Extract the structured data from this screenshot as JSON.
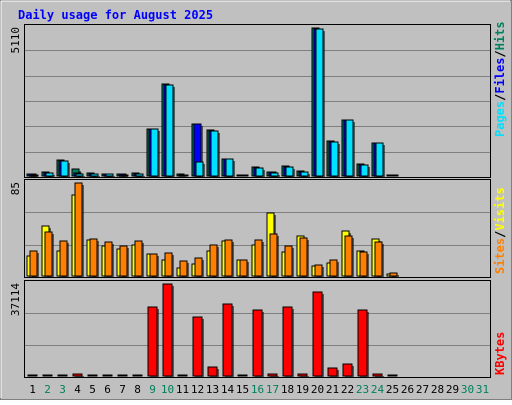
{
  "title": "Daily usage for August 2025",
  "labels": {
    "hits": "Hits",
    "files": "Files",
    "pages": "Pages",
    "visits": "Visits",
    "sites": "Sites",
    "kbytes": "KBytes",
    "sep": "/"
  },
  "colors": {
    "hits": "#00805c",
    "files": "#0000ff",
    "pages": "#00e0ff",
    "visits": "#ffff00",
    "sites": "#ff8000",
    "kbytes": "#ff0000",
    "title": "#0000ff",
    "plot_bg": "#c0c0c0",
    "grid": "#808080",
    "day_black": "#000000",
    "day_weekend": "#00805c"
  },
  "chart_data": [
    {
      "type": "bar",
      "name": "hits-files-pages",
      "ymax_label": "5110",
      "ylim": [
        0,
        5110
      ],
      "categories": [
        "1",
        "2",
        "3",
        "4",
        "5",
        "6",
        "7",
        "8",
        "9",
        "10",
        "11",
        "12",
        "13",
        "14",
        "15",
        "16",
        "17",
        "18",
        "19",
        "20",
        "21",
        "22",
        "23",
        "24",
        "25",
        "26",
        "27",
        "28",
        "29",
        "30",
        "31"
      ],
      "series": [
        {
          "name": "Hits",
          "values": [
            70,
            135,
            560,
            240,
            90,
            80,
            70,
            90,
            1640,
            3180,
            60,
            1800,
            1600,
            600,
            50,
            300,
            150,
            330,
            160,
            5110,
            1200,
            1950,
            400,
            1150,
            40,
            0,
            0,
            0,
            0,
            0,
            0
          ]
        },
        {
          "name": "Files",
          "values": [
            60,
            110,
            530,
            120,
            80,
            70,
            60,
            80,
            1630,
            3150,
            50,
            1780,
            1570,
            580,
            45,
            290,
            140,
            320,
            150,
            5090,
            1190,
            1940,
            390,
            1140,
            35,
            0,
            0,
            0,
            0,
            0,
            0
          ]
        },
        {
          "name": "Pages",
          "values": [
            50,
            100,
            510,
            80,
            60,
            60,
            50,
            70,
            1620,
            3130,
            40,
            480,
            1550,
            570,
            40,
            280,
            120,
            300,
            150,
            5080,
            1170,
            1920,
            370,
            1130,
            30,
            0,
            0,
            0,
            0,
            0,
            0
          ]
        }
      ]
    },
    {
      "type": "bar",
      "name": "visits-sites",
      "ymax_label": "85",
      "ylim": [
        0,
        85
      ],
      "categories": [
        "1",
        "2",
        "3",
        "4",
        "5",
        "6",
        "7",
        "8",
        "9",
        "10",
        "11",
        "12",
        "13",
        "14",
        "15",
        "16",
        "17",
        "18",
        "19",
        "20",
        "21",
        "22",
        "23",
        "24",
        "25",
        "26",
        "27",
        "28",
        "29",
        "30",
        "31"
      ],
      "series": [
        {
          "name": "Visits",
          "values": [
            18,
            46,
            23,
            74,
            33,
            27,
            25,
            28,
            20,
            15,
            7,
            11,
            23,
            32,
            15,
            28,
            58,
            22,
            37,
            9,
            12,
            41,
            23,
            34,
            2,
            0,
            0,
            0,
            0,
            0,
            0
          ]
        },
        {
          "name": "Sites",
          "values": [
            23,
            40,
            32,
            85,
            34,
            31,
            27,
            32,
            20,
            21,
            14,
            16,
            28,
            33,
            15,
            33,
            38,
            27,
            35,
            10,
            15,
            37,
            22,
            31,
            3,
            0,
            0,
            0,
            0,
            0,
            0
          ]
        }
      ]
    },
    {
      "type": "bar",
      "name": "kbytes",
      "ymax_label": "37114",
      "ylim": [
        0,
        37114
      ],
      "categories": [
        "1",
        "2",
        "3",
        "4",
        "5",
        "6",
        "7",
        "8",
        "9",
        "10",
        "11",
        "12",
        "13",
        "14",
        "15",
        "16",
        "17",
        "18",
        "19",
        "20",
        "21",
        "22",
        "23",
        "24",
        "25",
        "26",
        "27",
        "28",
        "29",
        "30",
        "31"
      ],
      "series": [
        {
          "name": "KBytes",
          "values": [
            300,
            300,
            300,
            700,
            300,
            300,
            300,
            300,
            28000,
            37114,
            300,
            23600,
            3800,
            29000,
            300,
            26800,
            800,
            28000,
            800,
            34000,
            3200,
            4800,
            26800,
            800,
            200,
            0,
            0,
            0,
            0,
            0,
            0
          ]
        }
      ]
    }
  ],
  "day_labels": [
    "1",
    "2",
    "3",
    "4",
    "5",
    "6",
    "7",
    "8",
    "9",
    "10",
    "11",
    "12",
    "13",
    "14",
    "15",
    "16",
    "17",
    "18",
    "19",
    "20",
    "21",
    "22",
    "23",
    "24",
    "25",
    "26",
    "27",
    "28",
    "29",
    "30",
    "31"
  ],
  "weekend_days": [
    "2",
    "3",
    "9",
    "10",
    "16",
    "17",
    "23",
    "24",
    "30",
    "31"
  ]
}
